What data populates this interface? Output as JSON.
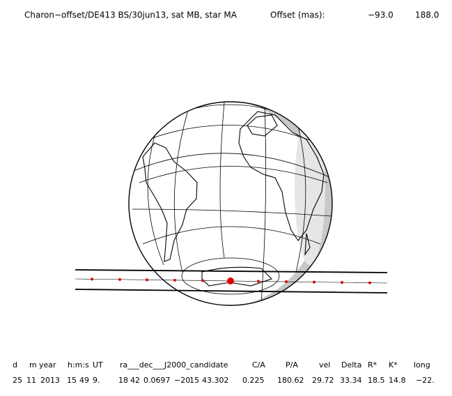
{
  "title": {
    "label": "Charon−offset/DE413 BS/30jun13, sat MB, star MA",
    "offset_label": "Offset (mas):",
    "offset_values": [
      "−93.0",
      "188.0"
    ]
  },
  "table": {
    "header": [
      "d",
      "m",
      "year",
      "h:m:s",
      "UT",
      "ra___dec___J2000_candidate",
      "C/A",
      "P/A",
      "vel",
      "Delta",
      "R*",
      "K*",
      "long"
    ],
    "row": [
      "25",
      "11",
      "2013",
      "15",
      "49",
      "9.",
      "18",
      "42",
      "0.0697",
      "−20",
      "15",
      "43.302",
      "0.225",
      "180.62",
      "29.72",
      "33.34",
      "18.5",
      "14.8",
      "−22."
    ]
  }
}
